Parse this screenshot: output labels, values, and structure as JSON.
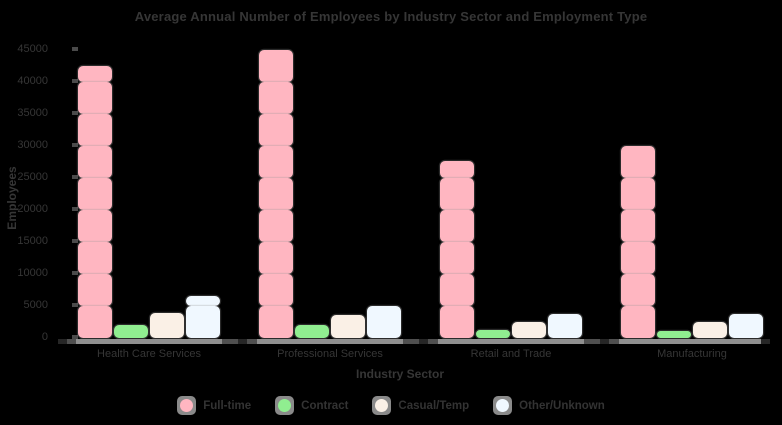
{
  "chart": {
    "title": "Average Annual Number of Employees by Industry Sector and Employment Type",
    "xlabel": "Industry Sector",
    "ylabel": "Employees",
    "colors": {
      "background": "#000000",
      "text": "#363636",
      "axis_band": "#4f4f4f",
      "axis_band_light": "#8f8f8f",
      "axis_tick": "#262626",
      "legend_swatch_bg": "#8a8a8a"
    }
  },
  "chart_data": {
    "type": "bar",
    "categories": [
      "Health Care Services",
      "Professional Services",
      "Retail and Trade",
      "Manufacturing"
    ],
    "series": [
      {
        "name": "Full-time",
        "color": "#ffb6c1",
        "values": [
          42500,
          45000,
          27600,
          30000
        ]
      },
      {
        "name": "Contract",
        "color": "#90ee90",
        "values": [
          2000,
          2100,
          1300,
          1100
        ]
      },
      {
        "name": "Casual/Temp",
        "color": "#faf0e6",
        "values": [
          3900,
          3600,
          2500,
          2500
        ]
      },
      {
        "name": "Other/Unknown",
        "color": "#f0f8ff",
        "values": [
          6500,
          5000,
          3800,
          3700
        ]
      }
    ],
    "yticks": [
      0,
      5000,
      10000,
      15000,
      20000,
      25000,
      30000,
      35000,
      40000,
      45000
    ],
    "ylim": [
      0,
      45000
    ],
    "grid": false,
    "legend_position": "bottom"
  }
}
